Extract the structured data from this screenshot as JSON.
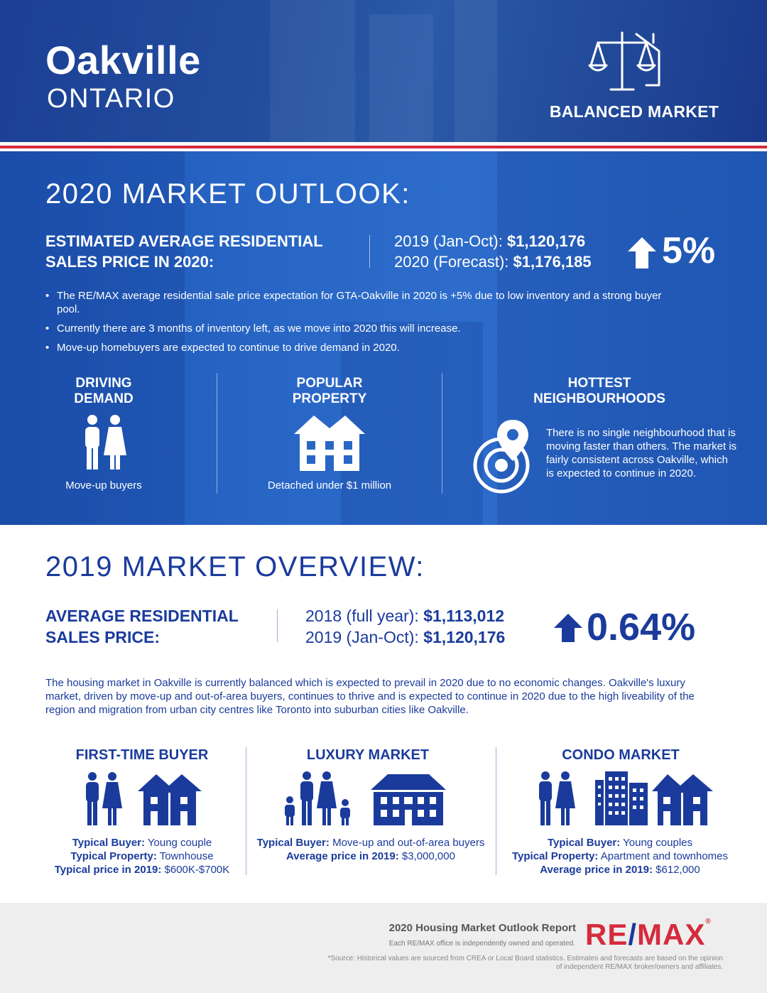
{
  "header": {
    "city": "Oakville",
    "province": "ONTARIO",
    "market_status": "BALANCED MARKET",
    "market_icon": "balance-scale-house-icon"
  },
  "outlook": {
    "title": "2020 MARKET OUTLOOK:",
    "price_label_line1": "ESTIMATED AVERAGE RESIDENTIAL",
    "price_label_line2": "SALES PRICE IN 2020:",
    "row1_label": "2019 (Jan-Oct): ",
    "row1_value": "$1,120,176",
    "row2_label": "2020 (Forecast): ",
    "row2_value": "$1,176,185",
    "change": "5%",
    "change_direction": "up",
    "bullets": [
      "The RE/MAX average residential sale price expectation for GTA-Oakville in 2020 is +5% due to low inventory and a strong buyer pool.",
      "Currently there are 3 months of inventory left, as we move into 2020 this will increase.",
      "Move-up homebuyers are expected to continue to drive demand in 2020."
    ],
    "driving_demand": {
      "head1": "DRIVING",
      "head2": "DEMAND",
      "caption": "Move-up buyers",
      "icon": "couple-icon"
    },
    "popular_property": {
      "head1": "POPULAR",
      "head2": "PROPERTY",
      "caption": "Detached under $1 million",
      "icon": "detached-house-icon"
    },
    "hottest": {
      "head1": "HOTTEST",
      "head2": "NEIGHBOURHOODS",
      "text": "There is no single neighbourhood that is moving faster than others. The market is fairly consistent across Oakville, which is expected to continue in 2020.",
      "icon": "location-target-icon"
    }
  },
  "overview": {
    "title": "2019 MARKET OVERVIEW:",
    "price_label_line1": "AVERAGE RESIDENTIAL",
    "price_label_line2": "SALES PRICE:",
    "row1_label": "2018 (full year): ",
    "row1_value": "$1,113,012",
    "row2_label": "2019 (Jan-Oct): ",
    "row2_value": "$1,120,176",
    "change": "0.64%",
    "change_direction": "up",
    "paragraph": "The housing market in Oakville is currently balanced which is expected to prevail in 2020 due to no economic changes. Oakville's luxury market, driven by move-up and out-of-area buyers, continues to thrive and is expected to continue in 2020 due to the high liveability of the region and migration from urban city centres like Toronto into suburban cities like Oakville.",
    "segments": [
      {
        "title": "FIRST-TIME BUYER",
        "l1_label": "Typical Buyer:",
        "l1_value": " Young couple",
        "l2_label": "Typical Property:",
        "l2_value": " Townhouse",
        "l3_label": "Typical price in 2019:",
        "l3_value": " $600K-$700K"
      },
      {
        "title": "LUXURY MARKET",
        "l1_label": "Typical Buyer:",
        "l1_value": " Move-up and out-of-area buyers",
        "l2_label": "Average price in 2019:",
        "l2_value": " $3,000,000"
      },
      {
        "title": "CONDO MARKET",
        "l1_label": "Typical Buyer:",
        "l1_value": " Young couples",
        "l2_label": "Typical Property:",
        "l2_value": " Apartment and townhomes",
        "l3_label": "Average price in 2019:",
        "l3_value": " $612,000"
      }
    ]
  },
  "footer": {
    "report": "2020 Housing Market Outlook Report",
    "owned": "Each RE/MAX office is independently owned and operated.",
    "brand_left": "RE",
    "brand_slash": "/",
    "brand_right": "MAX",
    "brand_reg": "®",
    "source": "*Source: Historical values are sourced from CREA or Local Board statistics. Estimates and forecasts are based on the opinion of independent RE/MAX broker/owners and affiliates."
  },
  "colors": {
    "primary_blue": "#1a3b9c",
    "header_blue": "#1b3f95",
    "outlook_blue": "#2866c5",
    "accent_red": "#d52b3c"
  }
}
